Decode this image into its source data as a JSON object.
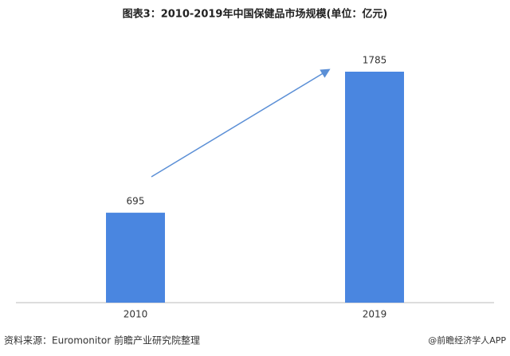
{
  "chart_data": {
    "type": "bar",
    "title": "图表3：2010-2019年中国保健品市场规模(单位：亿元)",
    "categories": [
      "2010",
      "2019"
    ],
    "values": [
      695,
      1785
    ],
    "color": "#4a86e0",
    "source": "资料来源：Euromonitor 前瞻产业研究院整理",
    "watermark": "@前瞻经济学人APP"
  }
}
